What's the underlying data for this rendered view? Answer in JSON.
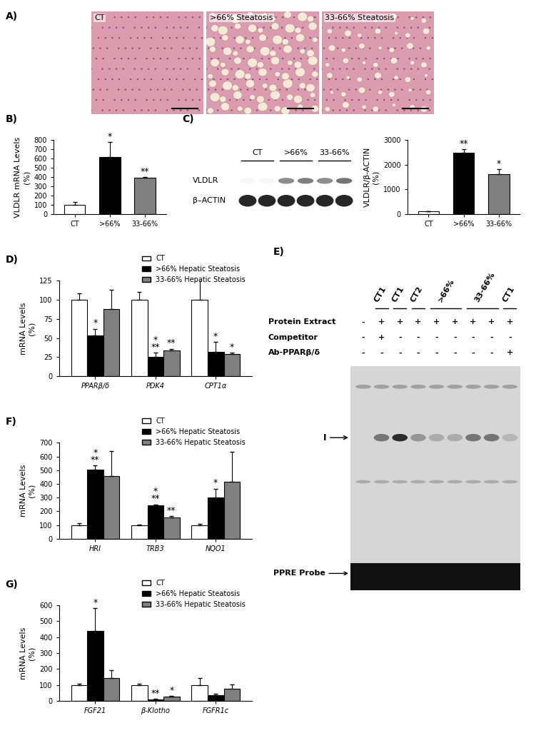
{
  "histology": {
    "panel_label": "A)",
    "images": [
      "CT",
      ">66% Steatosis",
      "33-66% Steatosis"
    ]
  },
  "western_blot": {
    "panel_label": "C)",
    "rows": [
      "VLDLR",
      "β–ACTIN"
    ],
    "groups": [
      "CT",
      ">66%",
      "33-66%"
    ]
  },
  "emsa": {
    "panel_label": "E)",
    "headers": [
      {
        "text": "CT1",
        "span": 1
      },
      {
        "text": "CT1",
        "span": 1
      },
      {
        "text": "CT2",
        "span": 1
      },
      {
        "text": ">66%",
        "span": 2
      },
      {
        "text": "33-66%",
        "span": 2
      },
      {
        "text": "CT1",
        "span": 1
      }
    ],
    "rows": [
      {
        "label": "Protein Extract",
        "signs": [
          "-",
          "+",
          "+",
          "+",
          "+",
          "+",
          "+",
          "+",
          "+"
        ]
      },
      {
        "label": "Competitor",
        "signs": [
          "-",
          "+",
          "-",
          "-",
          "-",
          "-",
          "-",
          "-",
          "-"
        ]
      },
      {
        "label": "Ab-PPARβ/δ",
        "signs": [
          "-",
          "-",
          "-",
          "-",
          "-",
          "-",
          "-",
          "-",
          "+"
        ]
      }
    ],
    "band_label": "I",
    "probe_label": "PPRE Probe"
  },
  "chart_data": [
    {
      "type": "bar",
      "panel_label": "B)",
      "ylabel": "VLDLR mRNA Levels\n(%)",
      "categories": [
        "CT",
        ">66%",
        "33-66%"
      ],
      "values": [
        100,
        615,
        395
      ],
      "errors": [
        30,
        165,
        5
      ],
      "colors": [
        "#ffffff",
        "#000000",
        "#808080"
      ],
      "annotations": [
        null,
        "*",
        "**"
      ],
      "ylim": [
        0,
        800
      ],
      "yticks": [
        0,
        100,
        200,
        300,
        400,
        500,
        600,
        700,
        800
      ]
    },
    {
      "type": "bar",
      "ylabel": "VLDLR/β-ACTIN\n(%)",
      "categories": [
        "CT",
        ">66%",
        "33-66%"
      ],
      "values": [
        100,
        2500,
        1620
      ],
      "errors": [
        15,
        130,
        190
      ],
      "colors": [
        "#ffffff",
        "#000000",
        "#808080"
      ],
      "annotations": [
        null,
        "**",
        "*"
      ],
      "ylim": [
        0,
        3000
      ],
      "yticks": [
        0,
        1000,
        2000,
        3000
      ]
    },
    {
      "type": "bar",
      "panel_label": "D)",
      "ylabel": "mRNA Levels\n(%)",
      "categories": [
        "PPARβ/δ",
        "PDK4",
        "CPT1α"
      ],
      "legend": "upper right",
      "ylim": [
        0,
        125
      ],
      "yticks": [
        0,
        25,
        50,
        75,
        100,
        125
      ],
      "series": [
        {
          "name": "CT",
          "color": "#ffffff",
          "values": [
            100,
            100,
            100
          ],
          "errors": [
            8,
            10,
            27
          ],
          "annotations": [
            null,
            null,
            null
          ]
        },
        {
          "name": ">66% Hepatic Steatosis",
          "color": "#000000",
          "values": [
            53,
            25,
            32
          ],
          "errors": [
            9,
            6,
            13
          ],
          "annotations": [
            "*",
            "*\n**",
            "*"
          ]
        },
        {
          "name": "33-66% Hepatic Steatosis",
          "color": "#808080",
          "values": [
            88,
            34,
            29
          ],
          "errors": [
            25,
            2,
            2
          ],
          "annotations": [
            null,
            "**",
            "*"
          ]
        }
      ]
    },
    {
      "type": "bar",
      "panel_label": "F)",
      "ylabel": "mRNA Levels\n(%)",
      "categories": [
        "HRI",
        "TRB3",
        "NQO1"
      ],
      "legend": "upper right",
      "ylim": [
        0,
        700
      ],
      "yticks": [
        0,
        100,
        200,
        300,
        400,
        500,
        600,
        700
      ],
      "series": [
        {
          "name": "CT",
          "color": "#ffffff",
          "values": [
            100,
            100,
            100
          ],
          "errors": [
            15,
            3,
            10
          ],
          "annotations": [
            null,
            null,
            null
          ]
        },
        {
          "name": ">66% Hepatic Steatosis",
          "color": "#000000",
          "values": [
            505,
            245,
            300
          ],
          "errors": [
            30,
            5,
            65
          ],
          "annotations": [
            "*\n**",
            "*\n**",
            "*"
          ]
        },
        {
          "name": "33-66% Hepatic Steatosis",
          "color": "#808080",
          "values": [
            455,
            155,
            415
          ],
          "errors": [
            185,
            10,
            220
          ],
          "annotations": [
            null,
            "**",
            null
          ]
        }
      ]
    },
    {
      "type": "bar",
      "panel_label": "G)",
      "ylabel": "mRNA Levels\n(%)",
      "categories": [
        "FGF21",
        "β-Klotho",
        "FGFR1c"
      ],
      "legend": "upper right",
      "ylim": [
        0,
        600
      ],
      "yticks": [
        0,
        100,
        200,
        300,
        400,
        500,
        600
      ],
      "series": [
        {
          "name": "CT",
          "color": "#ffffff",
          "values": [
            100,
            100,
            100
          ],
          "errors": [
            8,
            10,
            45
          ],
          "annotations": [
            null,
            null,
            null
          ]
        },
        {
          "name": ">66% Hepatic Steatosis",
          "color": "#000000",
          "values": [
            440,
            12,
            38
          ],
          "errors": [
            140,
            3,
            10
          ],
          "annotations": [
            "*",
            "**",
            null
          ]
        },
        {
          "name": "33-66% Hepatic Steatosis",
          "color": "#808080",
          "values": [
            145,
            30,
            78
          ],
          "errors": [
            50,
            3,
            25
          ],
          "annotations": [
            null,
            "*",
            null
          ]
        }
      ]
    }
  ]
}
